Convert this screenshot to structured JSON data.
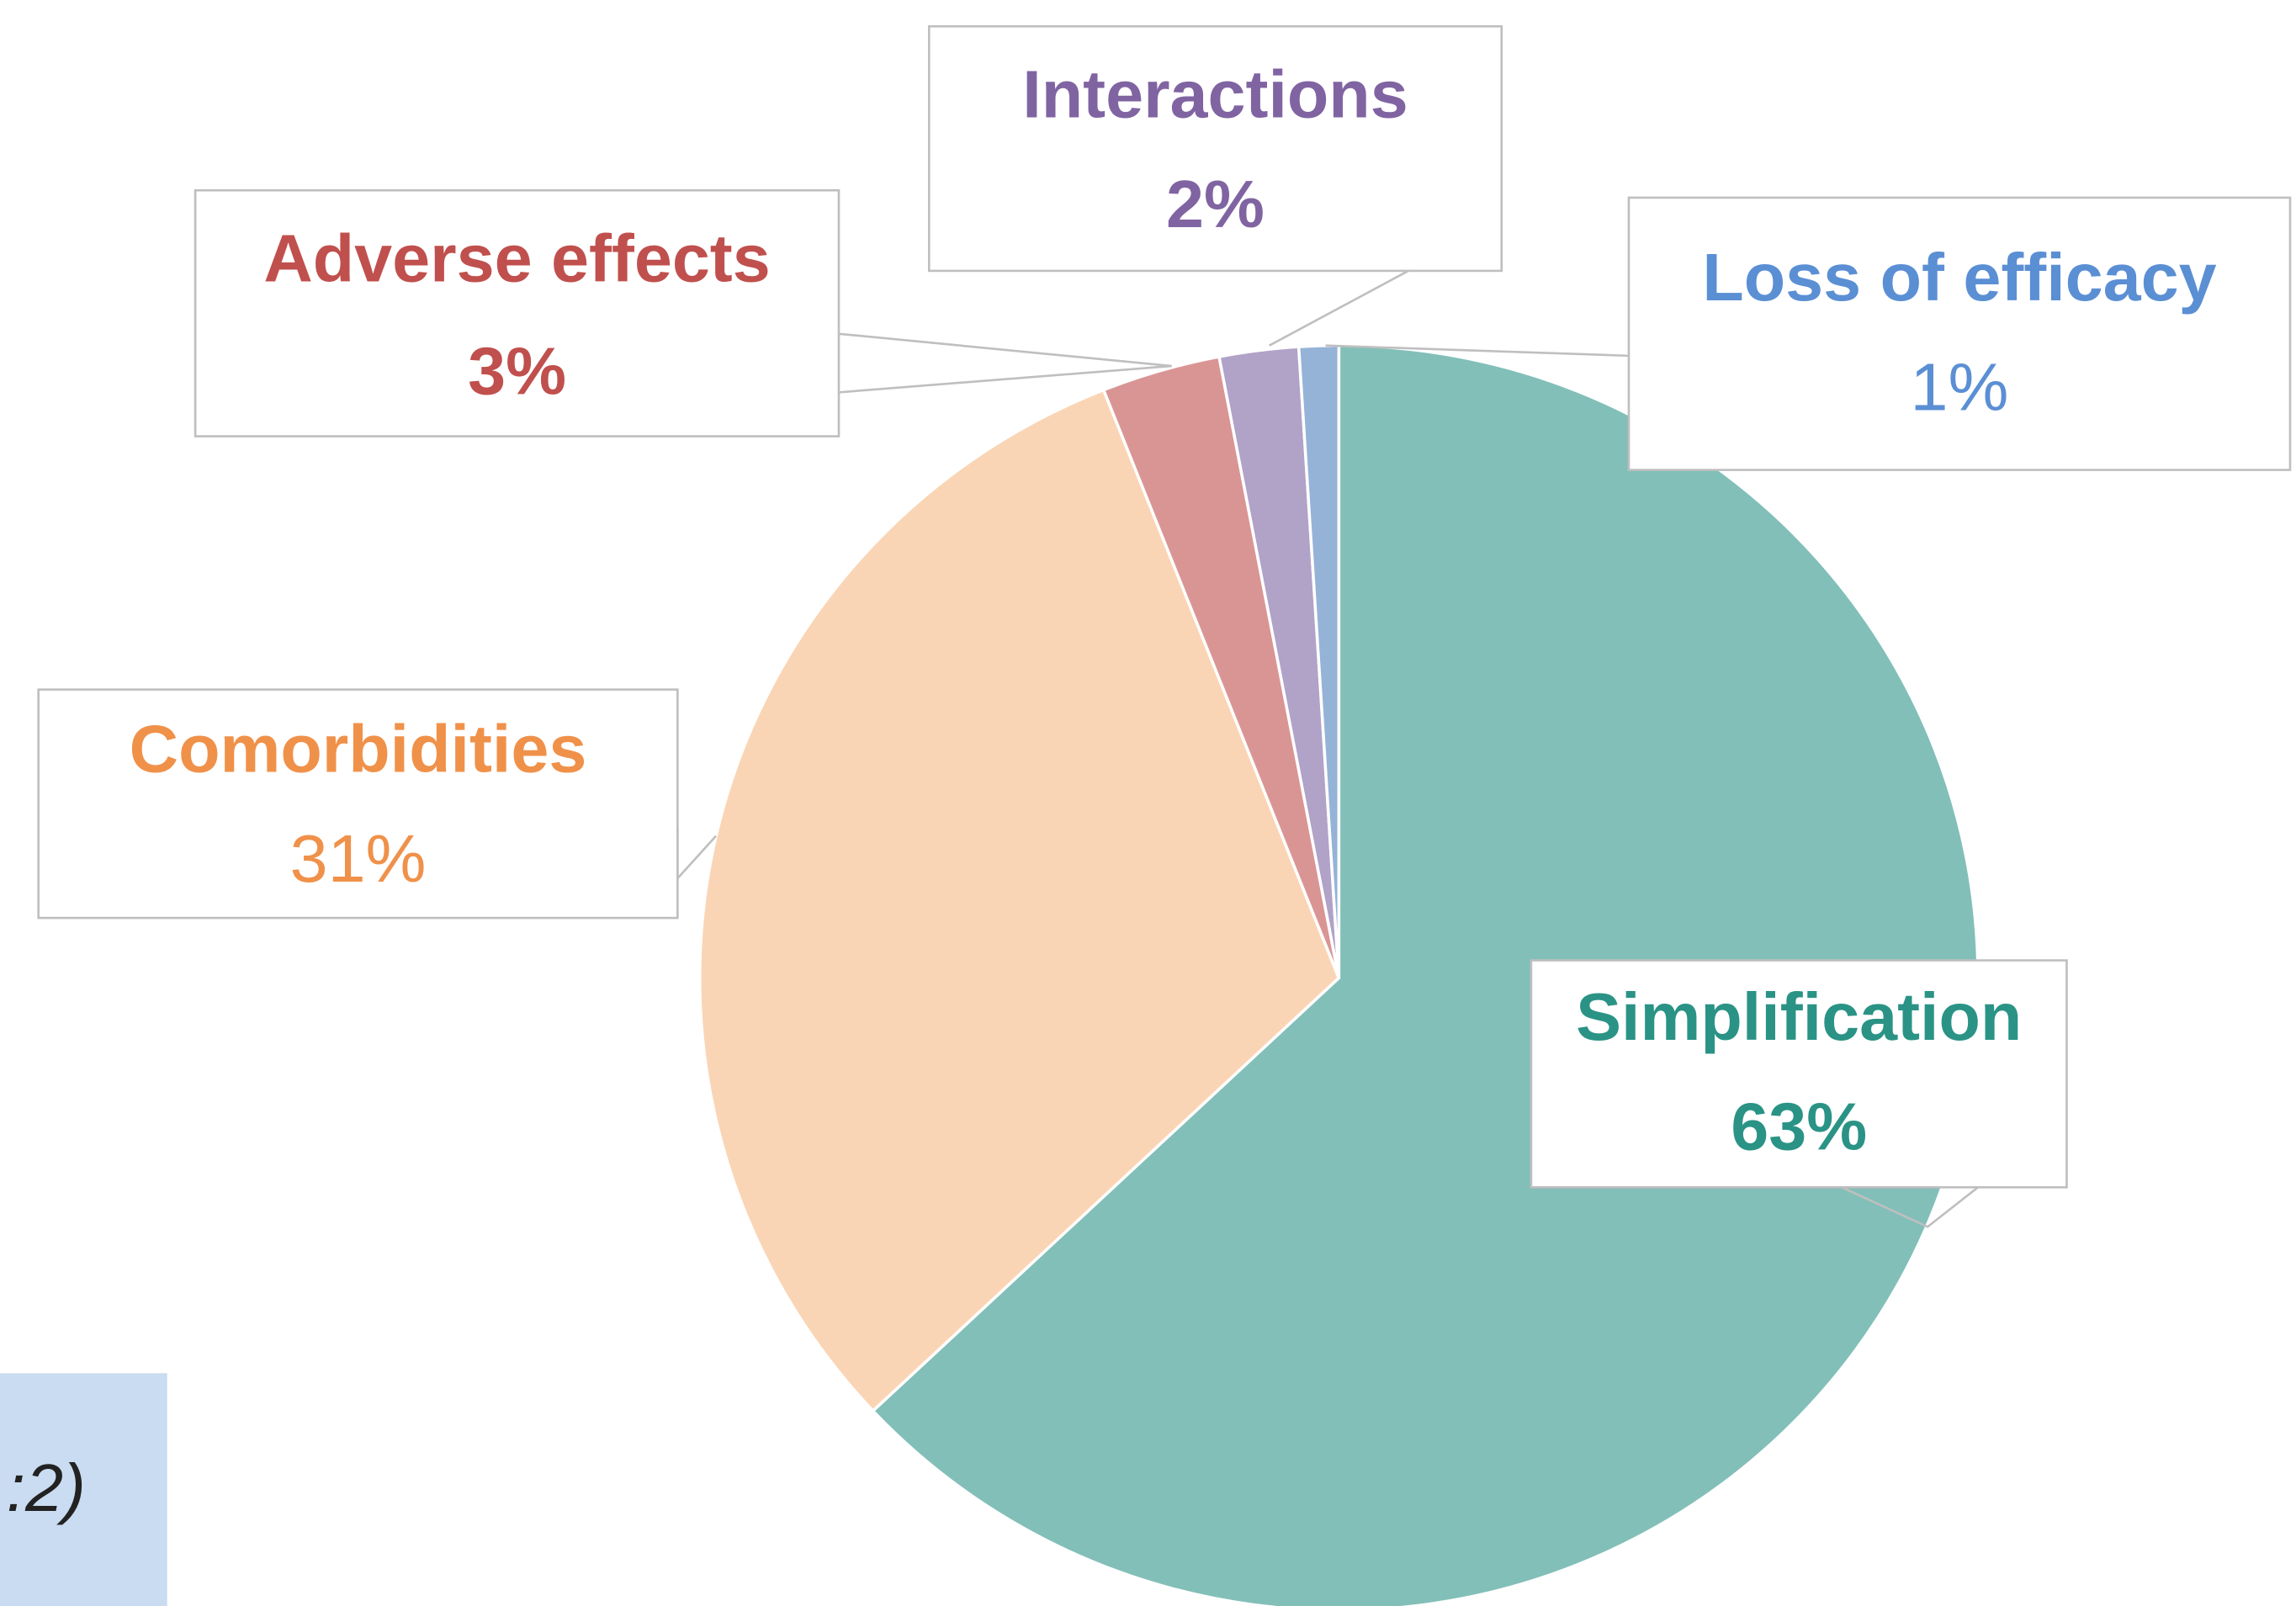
{
  "chart_data": {
    "type": "pie",
    "categories": [
      "Simplification",
      "Comorbidities",
      "Adverse effects",
      "Interactions",
      "Loss of efficacy"
    ],
    "values": [
      63,
      31,
      3,
      2,
      1
    ],
    "value_labels": [
      "63%",
      "31%",
      "3%",
      "2%",
      "1%"
    ],
    "colors": [
      "#82bfb8",
      "#fad5b5",
      "#d99594",
      "#b1a2c8",
      "#95b3d7"
    ],
    "label_colors": [
      "#2a9386",
      "#f0914a",
      "#c0504d",
      "#8064a2",
      "#5b8fd4"
    ],
    "annotation": ":2)"
  }
}
